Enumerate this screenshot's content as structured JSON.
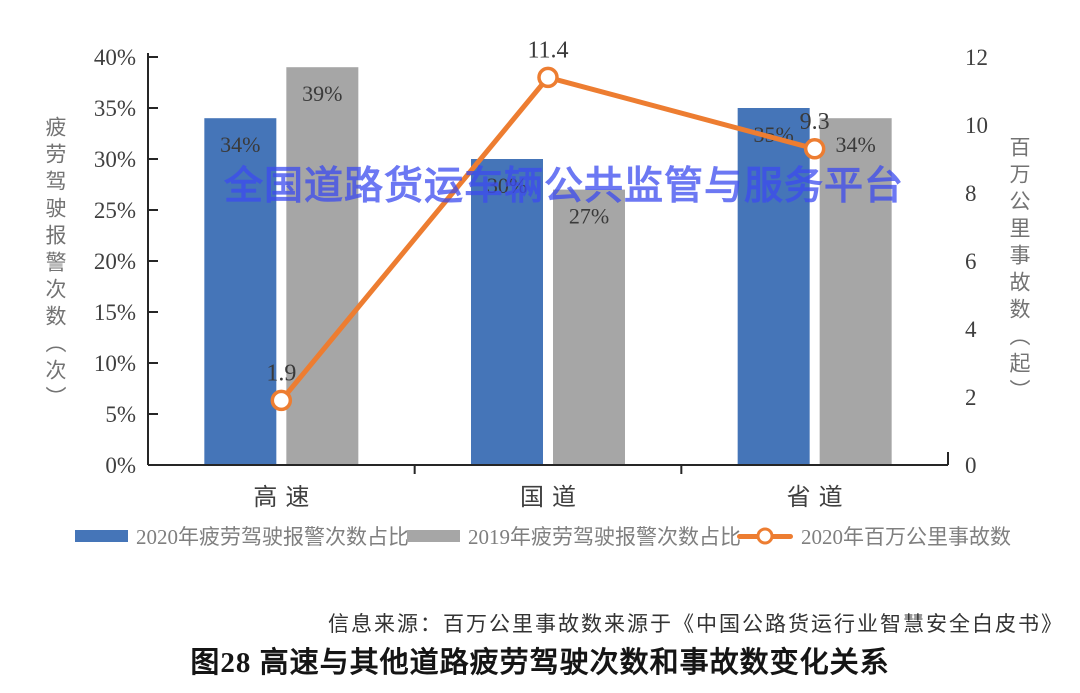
{
  "watermark": {
    "text": "全国道路货运车辆公共监管与服务平台"
  },
  "source_note": "信息来源：百万公里事故数来源于《中国公路货运行业智慧安全白皮书》",
  "caption": "图28 高速与其他道路疲劳驾驶次数和事故数变化关系",
  "colors": {
    "bar_2020": "#4575B8",
    "bar_2019": "#A6A6A6",
    "line_2020": "#ED7D31",
    "watermark_blue": "#3C4BEF",
    "axis": "#262626",
    "tick_label": "#3F3F3F",
    "legend_text": "#7F7F7F"
  },
  "chart_data": {
    "type": "bar",
    "overlay": "line",
    "categories": [
      "高速",
      "国道",
      "省道"
    ],
    "series": [
      {
        "name": "2020年疲劳驾驶报警次数占比",
        "kind": "bar",
        "axis": "left",
        "values": [
          34,
          30,
          35
        ],
        "labels": [
          "34%",
          "30%",
          "35%"
        ],
        "color": "#4575B8"
      },
      {
        "name": "2019年疲劳驾驶报警次数占比",
        "kind": "bar",
        "axis": "left",
        "values": [
          39,
          27,
          34
        ],
        "labels": [
          "39%",
          "27%",
          "34%"
        ],
        "color": "#A6A6A6"
      },
      {
        "name": "2020年百万公里事故数",
        "kind": "line",
        "axis": "right",
        "values": [
          1.9,
          11.4,
          9.3
        ],
        "labels": [
          "1.9",
          "11.4",
          "9.3"
        ],
        "color": "#ED7D31"
      }
    ],
    "left_axis": {
      "title": "疲劳驾驶报警次数（次）",
      "min": 0,
      "max": 40,
      "ticks": [
        "40%",
        "35%",
        "30%",
        "25%",
        "20%",
        "15%",
        "10%",
        "5%",
        "0%"
      ]
    },
    "right_axis": {
      "title": "百万公里事故数（起）",
      "min": 0,
      "max": 12,
      "ticks": [
        "12",
        "10",
        "8",
        "6",
        "4",
        "2",
        "0"
      ]
    },
    "grid": false,
    "legend_position": "bottom"
  }
}
